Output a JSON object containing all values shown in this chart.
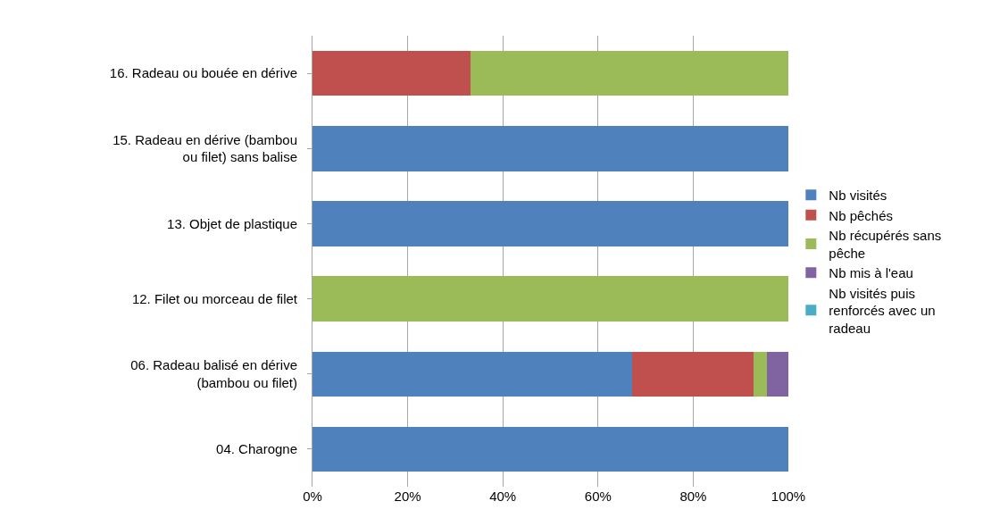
{
  "chart_data": {
    "type": "bar",
    "orientation": "horizontal",
    "stacked": true,
    "categories": [
      "16. Radeau ou bouée en dérive",
      "15. Radeau en dérive (bambou ou filet) sans balise",
      "13. Objet de plastique",
      "12. Filet ou morceau de filet",
      "06. Radeau balisé en dérive (bambou ou filet)",
      "04. Charogne"
    ],
    "series": [
      {
        "name": "Nb visités",
        "color": "#4f81bd",
        "values": [
          0,
          100,
          100,
          0,
          67.2,
          100
        ]
      },
      {
        "name": "Nb pêchés",
        "color": "#c0504d",
        "values": [
          33.3,
          0,
          0,
          0,
          25.4,
          0
        ]
      },
      {
        "name": "Nb récupérés sans pêche",
        "color": "#9bbb59",
        "values": [
          66.7,
          0,
          0,
          100,
          2.9,
          0
        ]
      },
      {
        "name": "Nb mis à l'eau",
        "color": "#8064a2",
        "values": [
          0,
          0,
          0,
          0,
          4.5,
          0
        ]
      },
      {
        "name": "Nb visités puis renforcés avec un radeau",
        "color": "#4bacc6",
        "values": [
          0,
          0,
          0,
          0,
          0,
          0
        ]
      }
    ],
    "xlim": [
      0,
      100
    ],
    "xticks": [
      {
        "value": 0,
        "label": "0%"
      },
      {
        "value": 20,
        "label": "20%"
      },
      {
        "value": 40,
        "label": "40%"
      },
      {
        "value": 60,
        "label": "60%"
      },
      {
        "value": 80,
        "label": "80%"
      },
      {
        "value": 100,
        "label": "100%"
      }
    ],
    "grid": "x",
    "legend": "right"
  }
}
